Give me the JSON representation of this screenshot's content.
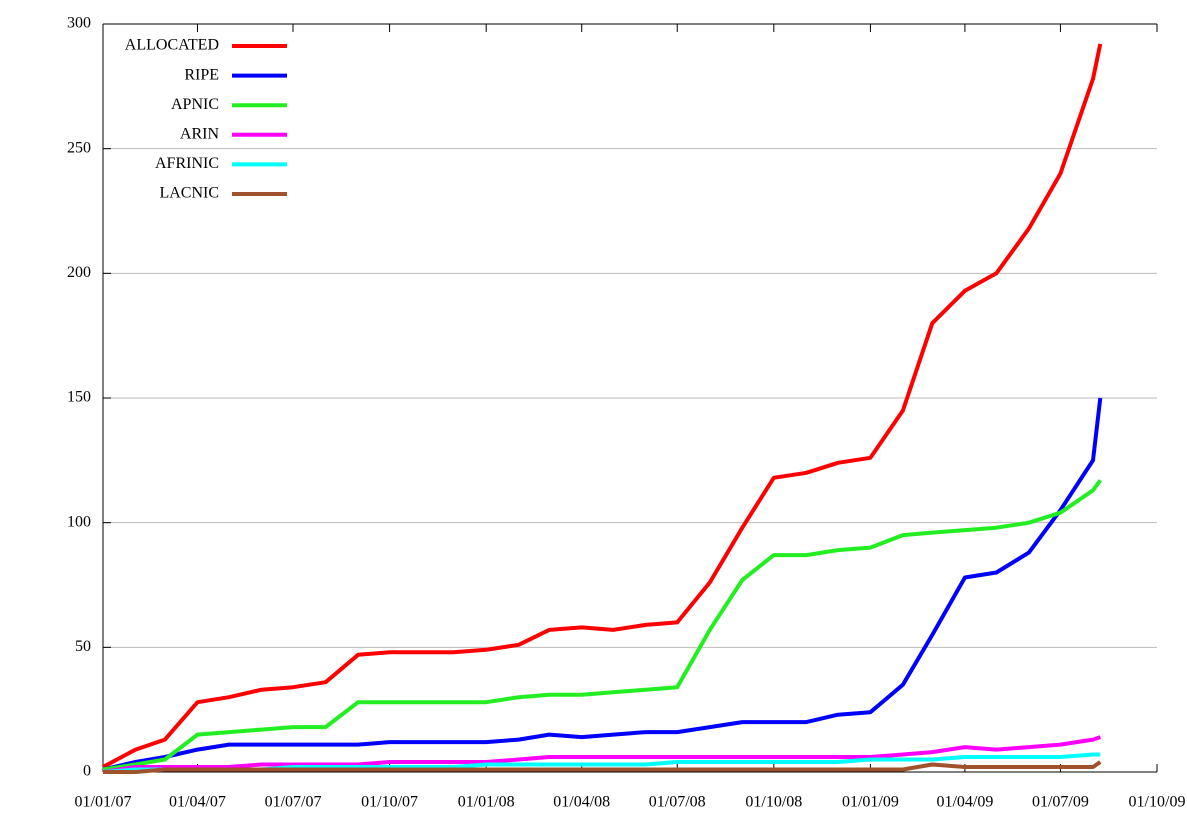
{
  "chart_data": {
    "type": "line",
    "x": [
      "2007-01-01",
      "2007-02-01",
      "2007-03-01",
      "2007-04-01",
      "2007-05-01",
      "2007-06-01",
      "2007-07-01",
      "2007-08-01",
      "2007-09-01",
      "2007-10-01",
      "2007-11-01",
      "2007-12-01",
      "2008-01-01",
      "2008-02-01",
      "2008-03-01",
      "2008-04-01",
      "2008-05-01",
      "2008-06-01",
      "2008-07-01",
      "2008-08-01",
      "2008-09-01",
      "2008-10-01",
      "2008-11-01",
      "2008-12-01",
      "2009-01-01",
      "2009-02-01",
      "2009-03-01",
      "2009-04-01",
      "2009-05-01",
      "2009-06-01",
      "2009-07-01",
      "2009-08-01",
      "2009-08-08"
    ],
    "series": [
      {
        "name": "ALLOCATED",
        "color": "#ff0000",
        "values": [
          2,
          9,
          13,
          28,
          30,
          33,
          34,
          36,
          47,
          48,
          48,
          48,
          49,
          51,
          57,
          58,
          57,
          59,
          60,
          76,
          98,
          118,
          120,
          124,
          126,
          145,
          180,
          193,
          200,
          218,
          240,
          278,
          292
        ]
      },
      {
        "name": "RIPE",
        "color": "#0000ff",
        "values": [
          1,
          4,
          6,
          9,
          11,
          11,
          11,
          11,
          11,
          12,
          12,
          12,
          12,
          13,
          15,
          14,
          15,
          16,
          16,
          18,
          20,
          20,
          20,
          23,
          24,
          35,
          55,
          78,
          80,
          88,
          105,
          125,
          150
        ]
      },
      {
        "name": "APNIC",
        "color": "#22ee22",
        "values": [
          1,
          3,
          5,
          15,
          16,
          17,
          18,
          18,
          28,
          28,
          28,
          28,
          28,
          30,
          31,
          31,
          32,
          33,
          34,
          57,
          77,
          87,
          87,
          89,
          90,
          95,
          96,
          97,
          98,
          100,
          104,
          113,
          117
        ]
      },
      {
        "name": "ARIN",
        "color": "#ff00ff",
        "values": [
          0,
          2,
          2,
          2,
          2,
          3,
          3,
          3,
          3,
          4,
          4,
          4,
          4,
          5,
          6,
          6,
          6,
          6,
          6,
          6,
          6,
          6,
          6,
          6,
          6,
          7,
          8,
          10,
          9,
          10,
          11,
          13,
          14
        ]
      },
      {
        "name": "AFRINIC",
        "color": "#00ffff",
        "values": [
          0,
          1,
          1,
          1,
          1,
          1,
          2,
          2,
          2,
          2,
          2,
          2,
          3,
          3,
          3,
          3,
          3,
          3,
          4,
          4,
          4,
          4,
          4,
          4,
          5,
          5,
          5,
          6,
          6,
          6,
          6,
          7,
          7
        ]
      },
      {
        "name": "LACNIC",
        "color": "#a0522d",
        "values": [
          0,
          0,
          1,
          1,
          1,
          1,
          1,
          1,
          1,
          1,
          1,
          1,
          1,
          1,
          1,
          1,
          1,
          1,
          1,
          1,
          1,
          1,
          1,
          1,
          1,
          1,
          3,
          2,
          2,
          2,
          2,
          2,
          4
        ]
      }
    ],
    "xlim": [
      "2007-01-01",
      "2009-10-01"
    ],
    "xticks": [
      {
        "value": "2007-01-01",
        "label": "01/01/07"
      },
      {
        "value": "2007-04-01",
        "label": "01/04/07"
      },
      {
        "value": "2007-07-01",
        "label": "01/07/07"
      },
      {
        "value": "2007-10-01",
        "label": "01/10/07"
      },
      {
        "value": "2008-01-01",
        "label": "01/01/08"
      },
      {
        "value": "2008-04-01",
        "label": "01/04/08"
      },
      {
        "value": "2008-07-01",
        "label": "01/07/08"
      },
      {
        "value": "2008-10-01",
        "label": "01/10/08"
      },
      {
        "value": "2009-01-01",
        "label": "01/01/09"
      },
      {
        "value": "2009-04-01",
        "label": "01/04/09"
      },
      {
        "value": "2009-07-01",
        "label": "01/07/09"
      },
      {
        "value": "2009-10-01",
        "label": "01/10/09"
      }
    ],
    "ylim": [
      0,
      300
    ],
    "yticks": [
      0,
      50,
      100,
      150,
      200,
      250,
      300
    ],
    "grid": true,
    "legend": "top-left"
  }
}
